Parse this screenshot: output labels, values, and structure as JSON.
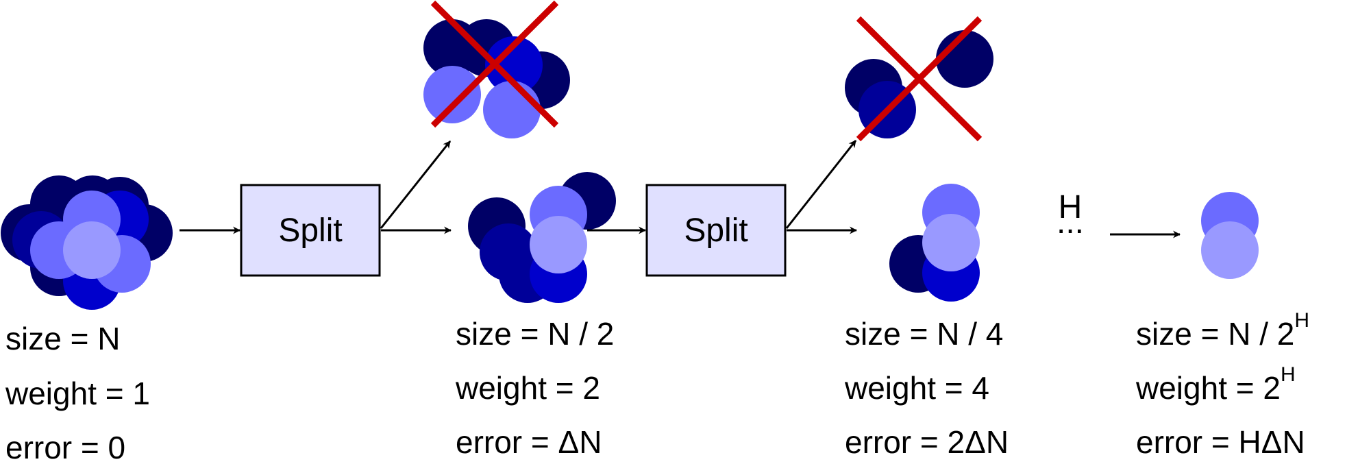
{
  "colors": {
    "navy": "#000066",
    "dark_blue": "#000099",
    "blue": "#0000cc",
    "light_blue": "#6b6bff",
    "lavender": "#9999ff",
    "box_fill": "#e0e0ff",
    "cross": "#cc0000"
  },
  "split_boxes": [
    {
      "label": "Split"
    },
    {
      "label": "Split"
    }
  ],
  "ellipsis": {
    "label": "H",
    "dots": "..."
  },
  "stages": [
    {
      "size": "size = N",
      "weight": "weight = 1",
      "error": "error = 0"
    },
    {
      "size": "size = N / 2",
      "weight": "weight = 2",
      "error": "error = ΔN"
    },
    {
      "size": "size = N / 4",
      "weight": "weight = 4",
      "error": "error = 2ΔN"
    },
    {
      "size_prefix": "size = N / 2",
      "size_sup": "H",
      "weight_prefix": "weight = 2",
      "weight_sup": "H",
      "error": "error = HΔN"
    }
  ],
  "icons": [
    "discarded-cross-icon",
    "arrow-icon"
  ]
}
